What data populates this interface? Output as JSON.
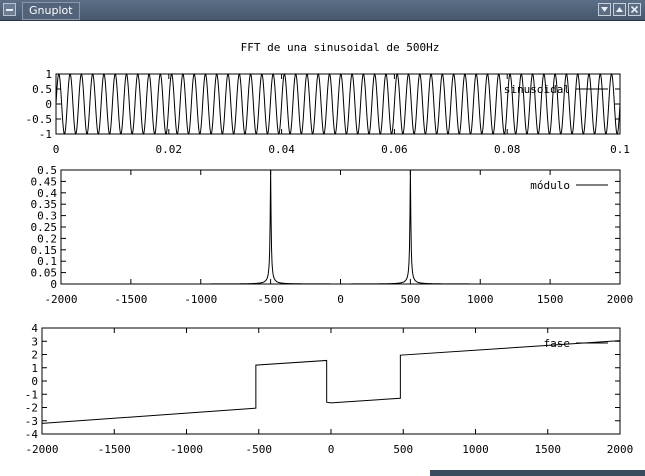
{
  "window": {
    "title": "Gnuplot",
    "buttons": [
      "minimize-icon",
      "maximize-icon",
      "close-icon"
    ],
    "titlebar_color": "#4f6178"
  },
  "chart_data": [
    {
      "type": "line",
      "title": "FFT de una sinusoidal de 500Hz",
      "xlabel": "",
      "ylabel": "",
      "xlim": [
        0,
        0.1
      ],
      "ylim": [
        -1,
        1
      ],
      "xticks": [
        0,
        0.02,
        0.04,
        0.06,
        0.08,
        0.1
      ],
      "xtick_labels": [
        "0",
        "0.02",
        "0.04",
        "0.06",
        "0.08",
        "0.1"
      ],
      "yticks": [
        1,
        0.5,
        0,
        -0.5,
        -1
      ],
      "ytick_labels": [
        "1",
        "0.5",
        "0",
        "-0.5",
        "-1"
      ],
      "legend_position": "top-right",
      "series": [
        {
          "name": "sinusoidal",
          "function": "sin(2*pi*500*t)",
          "frequency_hz": 500,
          "amplitude": 1
        }
      ]
    },
    {
      "type": "line",
      "xlim": [
        -2000,
        2000
      ],
      "ylim": [
        0,
        0.5
      ],
      "xticks": [
        -2000,
        -1500,
        -1000,
        -500,
        0,
        500,
        1000,
        1500,
        2000
      ],
      "xtick_labels": [
        "-2000",
        "-1500",
        "-1000",
        "-500",
        "0",
        "500",
        "1000",
        "1500",
        "2000"
      ],
      "yticks": [
        0.5,
        0.45,
        0.4,
        0.35,
        0.3,
        0.25,
        0.2,
        0.15,
        0.1,
        0.05,
        0
      ],
      "ytick_labels": [
        "0.5",
        "0.45",
        "0.4",
        "0.35",
        "0.3",
        "0.25",
        "0.2",
        "0.15",
        "0.1",
        "0.05",
        "0"
      ],
      "legend_position": "top-right",
      "series": [
        {
          "name": "módulo",
          "peaks": [
            {
              "x": -500,
              "y": 0.5
            },
            {
              "x": 500,
              "y": 0.5
            }
          ],
          "baseline": 0
        }
      ]
    },
    {
      "type": "line",
      "xlim": [
        -2000,
        2000
      ],
      "ylim": [
        -4,
        4
      ],
      "xticks": [
        -2000,
        -1500,
        -1000,
        -500,
        0,
        500,
        1000,
        1500,
        2000
      ],
      "xtick_labels": [
        "-2000",
        "-1500",
        "-1000",
        "-500",
        "0",
        "500",
        "1000",
        "1500",
        "2000"
      ],
      "yticks": [
        4,
        3,
        2,
        1,
        0,
        -1,
        -2,
        -3,
        -4
      ],
      "ytick_labels": [
        "4",
        "3",
        "2",
        "1",
        "0",
        "-1",
        "-2",
        "-3",
        "-4"
      ],
      "legend_position": "top-right",
      "series": [
        {
          "name": "fase",
          "x": [
            -2000,
            -520,
            -520,
            -30,
            -30,
            0,
            0,
            480,
            480,
            2000
          ],
          "y": [
            -3.2,
            -2.05,
            1.2,
            1.55,
            -1.6,
            -1.65,
            -1.65,
            -1.3,
            1.95,
            3.05
          ]
        }
      ]
    }
  ]
}
